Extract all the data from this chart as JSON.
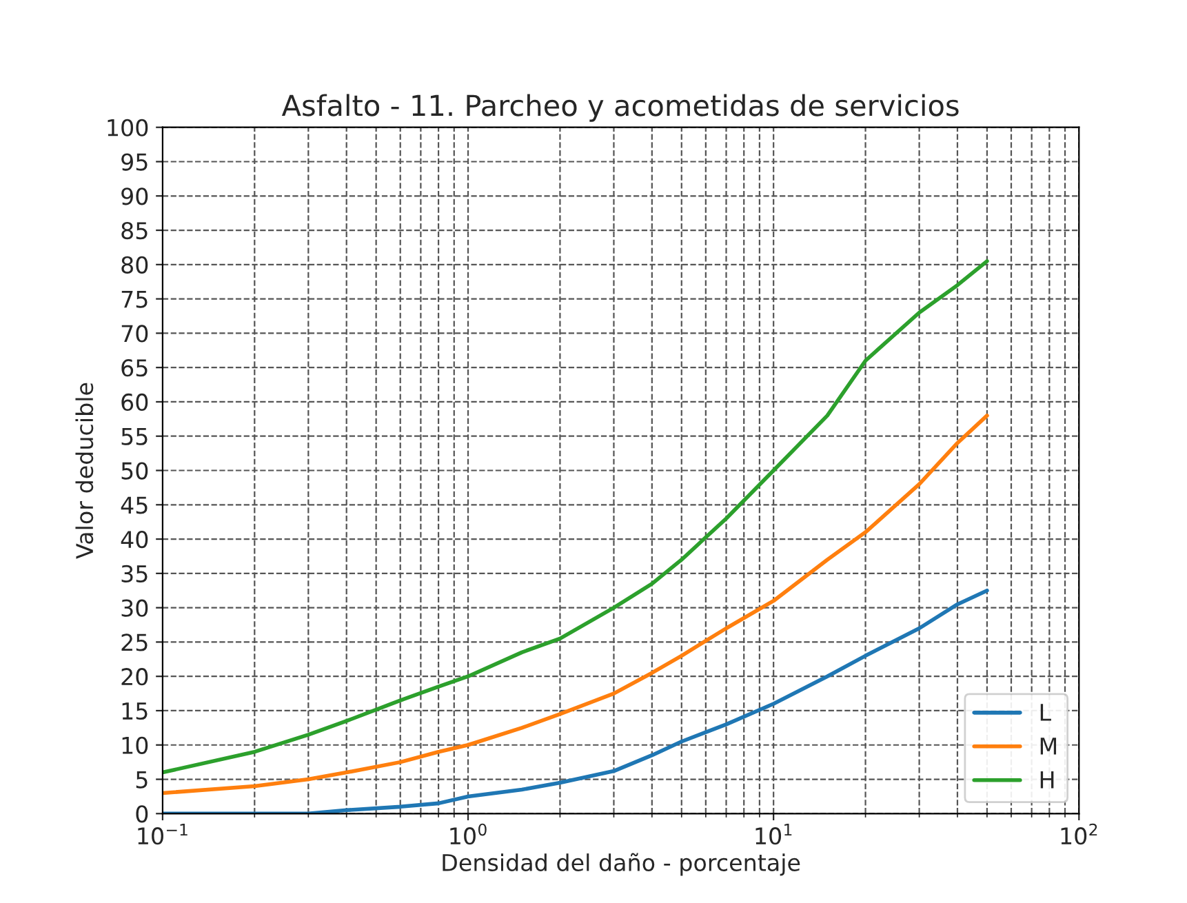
{
  "chart_data": {
    "type": "line",
    "title": "Asfalto - 11. Parcheo y acometidas de servicios",
    "xlabel": "Densidad del daño - porcentaje",
    "ylabel": "Valor deducible",
    "x": [
      0.1,
      0.2,
      0.3,
      0.4,
      0.6,
      0.8,
      1,
      1.5,
      2,
      3,
      4,
      5,
      7,
      10,
      15,
      20,
      30,
      40,
      50
    ],
    "series": [
      {
        "name": "L",
        "color": "#1f77b4",
        "values": [
          0,
          0,
          0,
          0.5,
          1,
          1.5,
          2.5,
          3.5,
          4.5,
          6.2,
          8.5,
          10.5,
          13,
          16,
          20,
          23,
          27,
          30.5,
          32.5
        ]
      },
      {
        "name": "M",
        "color": "#ff7f0e",
        "values": [
          3,
          4,
          5,
          6,
          7.5,
          9,
          10,
          12.5,
          14.5,
          17.5,
          20.5,
          23,
          27,
          31,
          37,
          41,
          48,
          54,
          58
        ]
      },
      {
        "name": "H",
        "color": "#2ca02c",
        "values": [
          6,
          9,
          11.5,
          13.5,
          16.5,
          18.5,
          20,
          23.5,
          25.5,
          30,
          33.5,
          37,
          43,
          50,
          58,
          66,
          73,
          77,
          80.5
        ]
      }
    ],
    "log": "x",
    "xlim": [
      0.1,
      100
    ],
    "xticks": [
      {
        "value": 0.1,
        "label": "10$^{−1}$"
      },
      {
        "value": 1,
        "label": "10$^{0}$"
      },
      {
        "value": 10,
        "label": "10$^{1}$"
      },
      {
        "value": 100,
        "label": "10$^{2}$"
      }
    ],
    "ylim": [
      0,
      100
    ],
    "yticks": [
      0,
      5,
      10,
      15,
      20,
      25,
      30,
      35,
      40,
      45,
      50,
      55,
      60,
      65,
      70,
      75,
      80,
      85,
      90,
      95,
      100
    ],
    "grid": true,
    "legend": "bottom right",
    "line_style": "solid",
    "marker": "none"
  }
}
